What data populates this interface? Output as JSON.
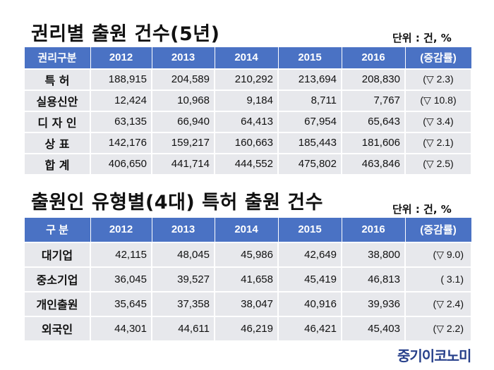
{
  "table1": {
    "title": "권리별 출원 건수(5년)",
    "unit": "단위 : 건, %",
    "headers": [
      "권리구분",
      "2012",
      "2013",
      "2014",
      "2015",
      "2016",
      "(증감률)"
    ],
    "rows": [
      {
        "label": "특 허",
        "values": [
          "188,915",
          "204,589",
          "210,292",
          "213,694",
          "208,830"
        ],
        "change": "(▽ 2.3)"
      },
      {
        "label": "실용신안",
        "values": [
          "12,424",
          "10,968",
          "9,184",
          "8,711",
          "7,767"
        ],
        "change": "(▽ 10.8)"
      },
      {
        "label": "디 자 인",
        "values": [
          "63,135",
          "66,940",
          "64,413",
          "67,954",
          "65,643"
        ],
        "change": "(▽ 3.4)"
      },
      {
        "label": "상 표",
        "values": [
          "142,176",
          "159,217",
          "160,663",
          "185,443",
          "181,606"
        ],
        "change": "(▽ 2.1)"
      },
      {
        "label": "합 계",
        "values": [
          "406,650",
          "441,714",
          "444,552",
          "475,802",
          "463,846"
        ],
        "change": "(▽ 2.5)"
      }
    ]
  },
  "table2": {
    "title": "출원인 유형별(4대) 특허 출원 건수",
    "unit": "단위 : 건, %",
    "headers": [
      "구 분",
      "2012",
      "2013",
      "2014",
      "2015",
      "2016",
      "(증감률)"
    ],
    "rows": [
      {
        "label": "대기업",
        "values": [
          "42,115",
          "48,045",
          "45,986",
          "42,649",
          "38,800"
        ],
        "change": "(▽ 9.0)"
      },
      {
        "label": "중소기업",
        "values": [
          "36,045",
          "39,527",
          "41,658",
          "45,419",
          "46,813"
        ],
        "change": "( 3.1)"
      },
      {
        "label": "개인출원",
        "values": [
          "35,645",
          "37,358",
          "38,047",
          "40,916",
          "39,936"
        ],
        "change": "(▽ 2.4)"
      },
      {
        "label": "외국인",
        "values": [
          "44,301",
          "44,611",
          "46,219",
          "46,421",
          "45,403"
        ],
        "change": "(▽ 2.2)"
      }
    ]
  },
  "logo": "중기이코노미",
  "colors": {
    "header_bg": "#4a72c4",
    "cell_bg": "#e7e8ec",
    "logo": "#27408b"
  }
}
